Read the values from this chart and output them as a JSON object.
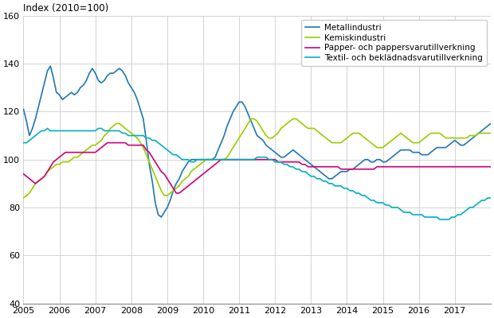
{
  "title": "Index (2010=100)",
  "ylim": [
    40,
    160
  ],
  "yticks": [
    40,
    60,
    80,
    100,
    120,
    140,
    160
  ],
  "xlim_start": 2005.0,
  "xlim_end": 2018.0,
  "xtick_years": [
    2005,
    2006,
    2007,
    2008,
    2009,
    2010,
    2011,
    2012,
    2013,
    2014,
    2015,
    2016,
    2017
  ],
  "legend_labels": [
    "Metallindustri",
    "Kemiskindustri",
    "Papper- och pappersvarutillverkning",
    "Textil- och beklädnadsvarutillverkning"
  ],
  "colors": [
    "#1f77b4",
    "#9acd00",
    "#cc007a",
    "#00b0c0"
  ],
  "line_width": 1.2,
  "metallindustri": [
    121,
    116,
    110,
    113,
    117,
    122,
    127,
    132,
    137,
    139,
    134,
    128,
    127,
    125,
    126,
    127,
    128,
    127,
    128,
    130,
    131,
    133,
    136,
    138,
    136,
    133,
    132,
    133,
    135,
    136,
    136,
    137,
    138,
    137,
    135,
    132,
    130,
    128,
    125,
    121,
    117,
    108,
    98,
    91,
    82,
    77,
    76,
    78,
    80,
    83,
    87,
    90,
    92,
    95,
    97,
    99,
    100,
    100,
    100,
    100,
    100,
    100,
    100,
    100,
    101,
    104,
    107,
    110,
    114,
    117,
    120,
    122,
    124,
    124,
    122,
    119,
    116,
    113,
    110,
    109,
    108,
    106,
    105,
    104,
    103,
    102,
    101,
    101,
    102,
    103,
    104,
    103,
    102,
    101,
    100,
    99,
    98,
    97,
    96,
    95,
    94,
    93,
    92,
    92,
    93,
    94,
    95,
    95,
    95,
    96,
    96,
    97,
    98,
    99,
    100,
    100,
    99,
    99,
    100,
    100,
    99,
    99,
    100,
    101,
    102,
    103,
    104,
    104,
    104,
    104,
    103,
    103,
    103,
    102,
    102,
    102,
    103,
    104,
    105,
    105,
    105,
    105,
    106,
    107,
    108,
    107,
    106,
    106,
    107,
    108,
    109,
    110,
    111,
    112,
    113,
    114,
    115,
    116,
    116
  ],
  "kemiskindustri": [
    84,
    85,
    86,
    88,
    90,
    91,
    92,
    93,
    95,
    96,
    97,
    98,
    98,
    99,
    99,
    99,
    100,
    101,
    101,
    102,
    103,
    104,
    105,
    106,
    106,
    107,
    108,
    110,
    111,
    113,
    114,
    115,
    115,
    114,
    113,
    112,
    111,
    110,
    109,
    107,
    105,
    102,
    99,
    96,
    93,
    90,
    87,
    85,
    85,
    86,
    87,
    88,
    89,
    91,
    92,
    93,
    95,
    96,
    97,
    98,
    99,
    100,
    100,
    100,
    100,
    100,
    100,
    100,
    101,
    103,
    105,
    107,
    109,
    111,
    113,
    115,
    117,
    117,
    116,
    114,
    112,
    110,
    109,
    109,
    110,
    111,
    113,
    114,
    115,
    116,
    117,
    117,
    116,
    115,
    114,
    113,
    113,
    113,
    112,
    111,
    110,
    109,
    108,
    107,
    107,
    107,
    107,
    108,
    109,
    110,
    111,
    111,
    111,
    110,
    109,
    108,
    107,
    106,
    105,
    105,
    105,
    106,
    107,
    108,
    109,
    110,
    111,
    110,
    109,
    108,
    107,
    107,
    107,
    108,
    109,
    110,
    111,
    111,
    111,
    111,
    110,
    109,
    109,
    109,
    109,
    109,
    109,
    109,
    109,
    110,
    110,
    110,
    111,
    111,
    111,
    111,
    111,
    111,
    111
  ],
  "papper": [
    94,
    93,
    92,
    91,
    90,
    91,
    92,
    93,
    95,
    97,
    99,
    100,
    101,
    102,
    103,
    103,
    103,
    103,
    103,
    103,
    103,
    103,
    103,
    103,
    103,
    104,
    105,
    106,
    107,
    107,
    107,
    107,
    107,
    107,
    107,
    106,
    106,
    106,
    106,
    106,
    106,
    104,
    103,
    101,
    99,
    97,
    95,
    94,
    92,
    90,
    88,
    86,
    86,
    87,
    88,
    89,
    90,
    91,
    92,
    93,
    94,
    95,
    96,
    97,
    98,
    99,
    100,
    100,
    100,
    100,
    100,
    100,
    100,
    100,
    100,
    100,
    100,
    100,
    100,
    100,
    100,
    100,
    100,
    100,
    100,
    99,
    99,
    99,
    99,
    99,
    99,
    99,
    99,
    98,
    98,
    97,
    97,
    97,
    97,
    97,
    97,
    97,
    97,
    97,
    97,
    97,
    96,
    96,
    96,
    96,
    96,
    96,
    96,
    96,
    96,
    96,
    96,
    96,
    97,
    97,
    97,
    97,
    97,
    97,
    97,
    97,
    97,
    97,
    97,
    97,
    97,
    97,
    97,
    97,
    97,
    97,
    97,
    97,
    97,
    97,
    97,
    97,
    97,
    97,
    97,
    97,
    97,
    97,
    97,
    97,
    97,
    97,
    97,
    97,
    97,
    97,
    97,
    97,
    97
  ],
  "textil": [
    107,
    107,
    108,
    109,
    110,
    111,
    112,
    112,
    113,
    112,
    112,
    112,
    112,
    112,
    112,
    112,
    112,
    112,
    112,
    112,
    112,
    112,
    112,
    112,
    112,
    113,
    113,
    112,
    112,
    112,
    112,
    112,
    112,
    111,
    111,
    110,
    110,
    110,
    110,
    110,
    110,
    109,
    109,
    108,
    108,
    107,
    106,
    105,
    104,
    103,
    102,
    102,
    101,
    100,
    100,
    100,
    99,
    99,
    100,
    100,
    100,
    100,
    100,
    100,
    100,
    100,
    100,
    100,
    100,
    100,
    100,
    100,
    100,
    100,
    100,
    100,
    100,
    100,
    101,
    101,
    101,
    101,
    100,
    100,
    99,
    99,
    99,
    98,
    98,
    97,
    97,
    96,
    96,
    95,
    95,
    94,
    93,
    93,
    92,
    92,
    91,
    91,
    90,
    90,
    89,
    89,
    89,
    88,
    88,
    87,
    87,
    86,
    86,
    85,
    85,
    84,
    83,
    83,
    82,
    82,
    82,
    81,
    81,
    80,
    80,
    80,
    79,
    78,
    78,
    78,
    77,
    77,
    77,
    77,
    76,
    76,
    76,
    76,
    76,
    75,
    75,
    75,
    75,
    76,
    76,
    77,
    77,
    78,
    79,
    80,
    80,
    81,
    82,
    83,
    83,
    84,
    84,
    84,
    84
  ]
}
